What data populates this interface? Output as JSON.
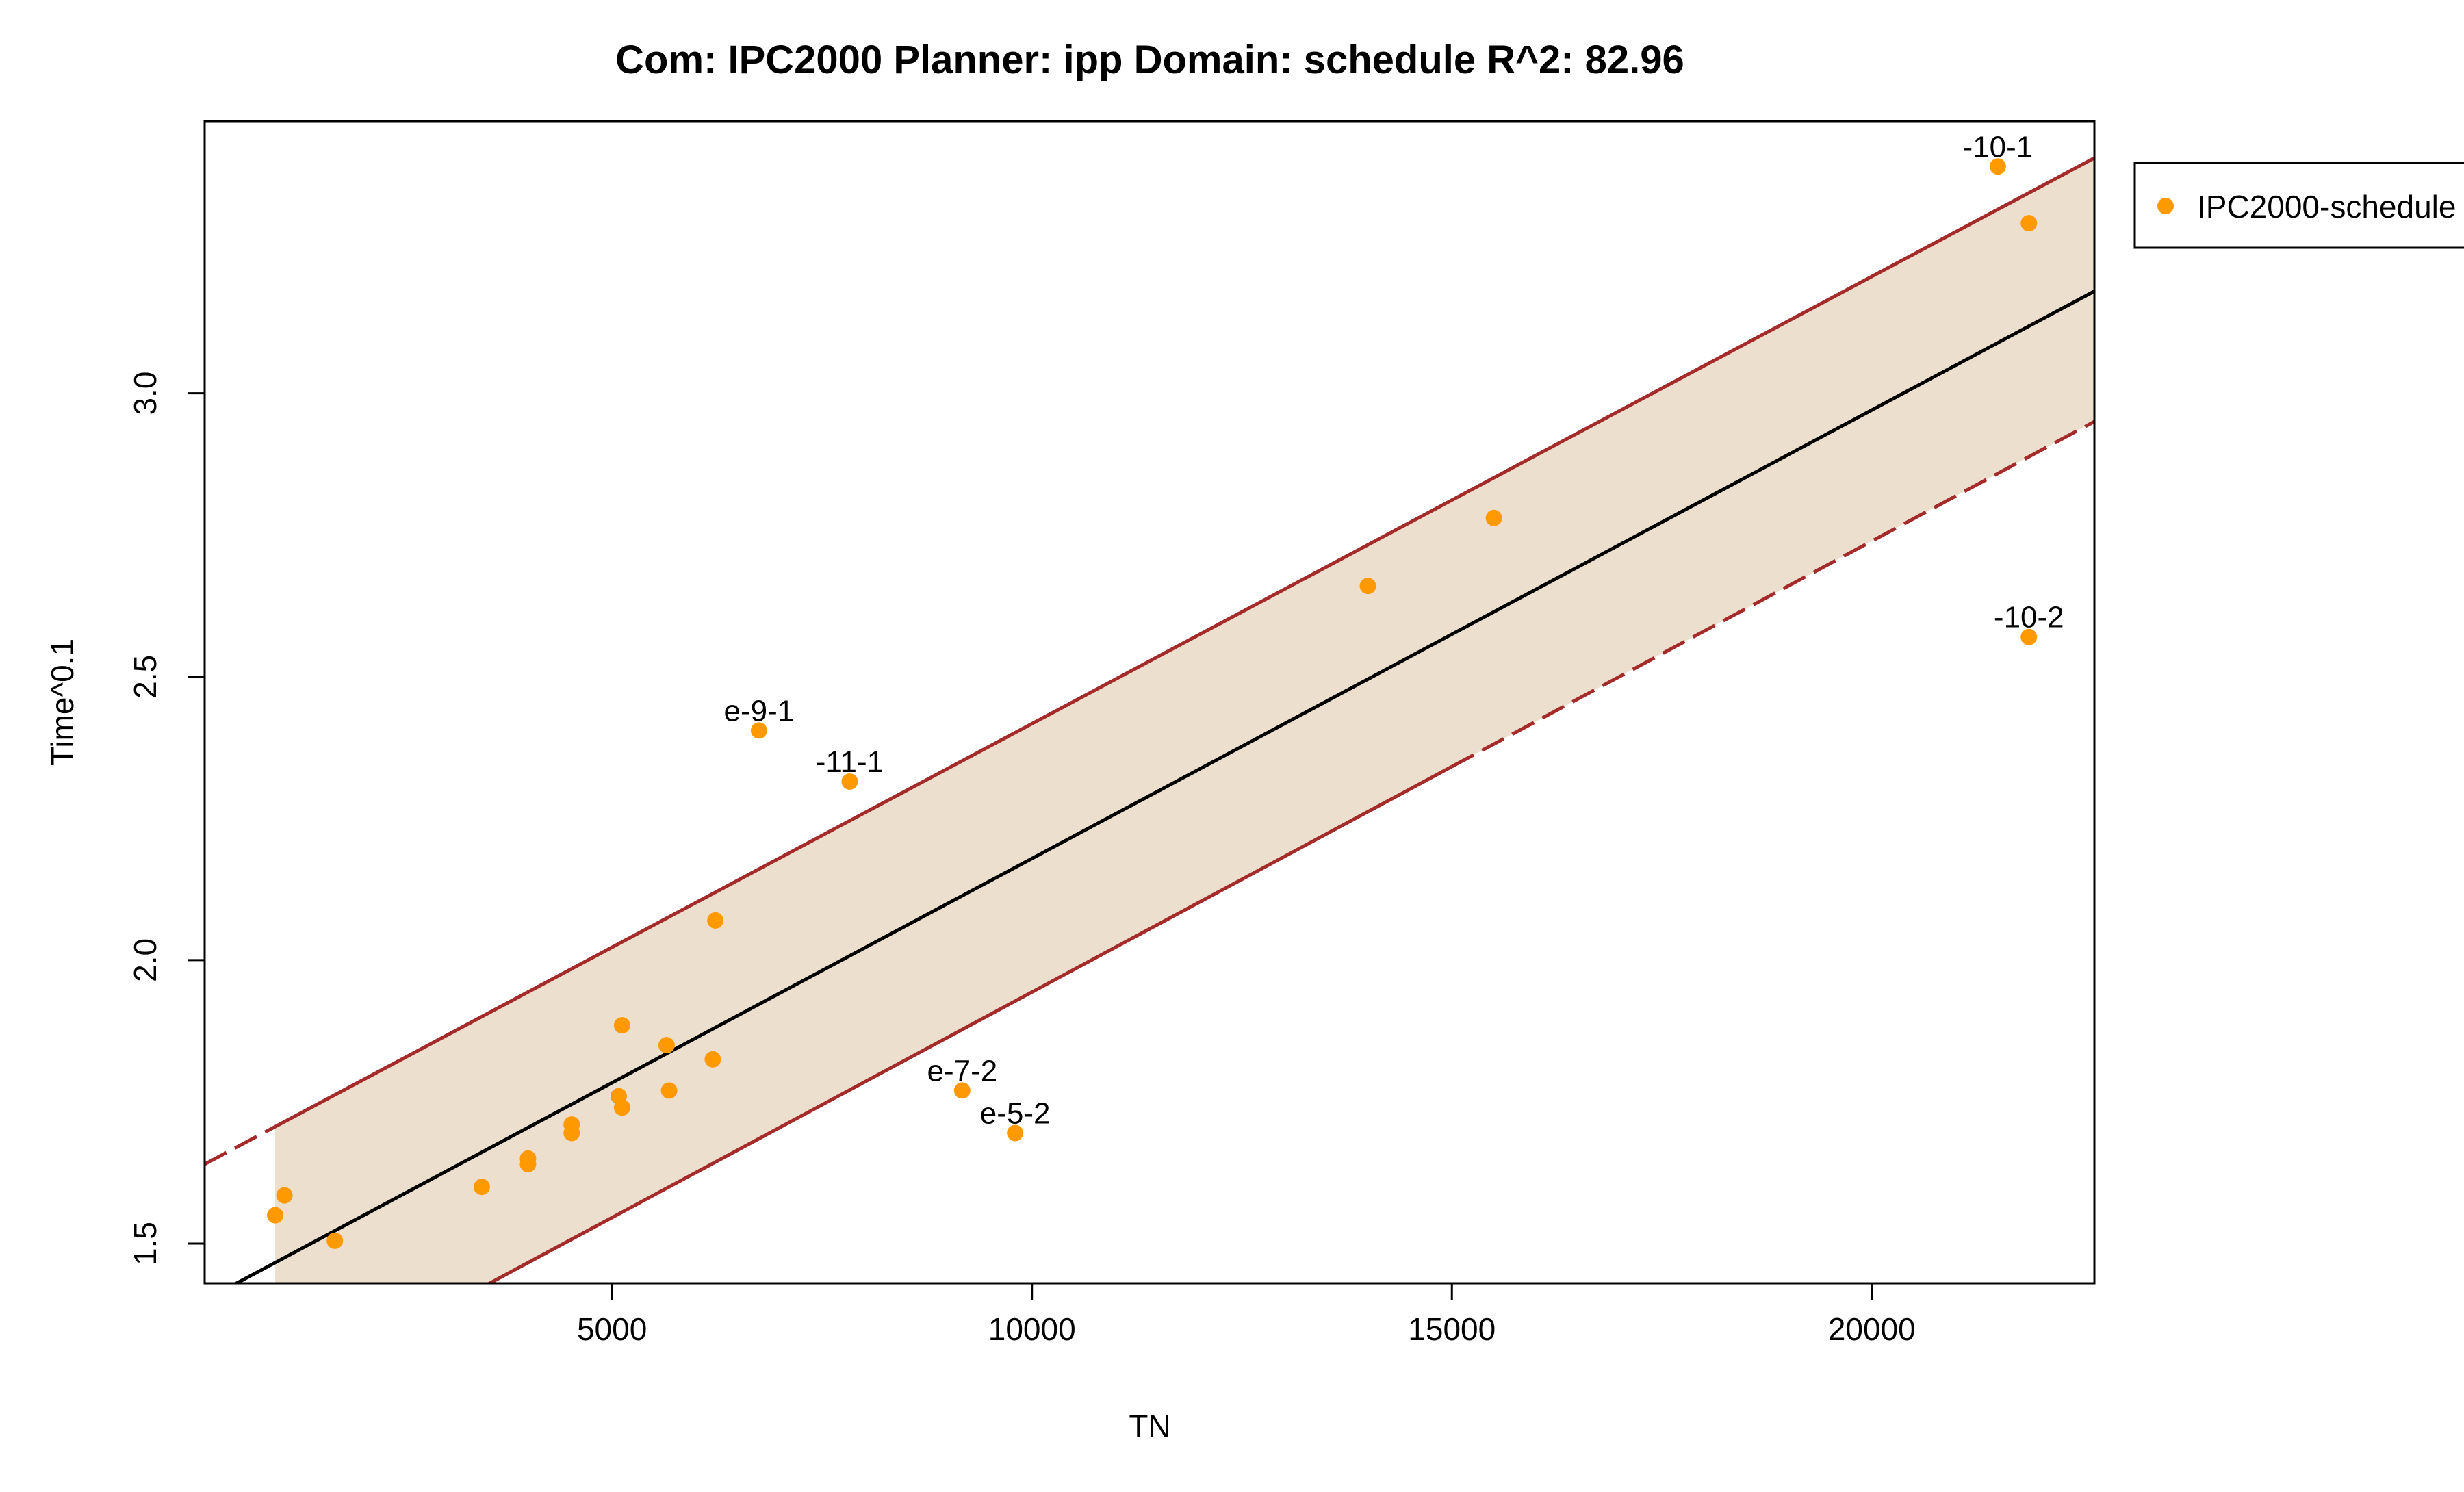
{
  "chart_data": {
    "type": "scatter",
    "title": "Com: IPC2000 Planner: ipp Domain: schedule R^2: 82.96",
    "xlabel": "TN",
    "ylabel": "Time^0.1",
    "xlim": [
      150,
      22650
    ],
    "ylim": [
      1.43,
      3.48
    ],
    "xticks": [
      5000,
      10000,
      15000,
      20000
    ],
    "xtick_labels": [
      "5000",
      "10000",
      "15000",
      "20000"
    ],
    "yticks": [
      1.5,
      2.0,
      2.5,
      3.0
    ],
    "ytick_labels": [
      "1.5",
      "2.0",
      "2.5",
      "3.0"
    ],
    "grid": false,
    "legend": {
      "position": "outside-right-top",
      "entries": [
        {
          "label": "IPC2000-schedule",
          "color": "#ff9900"
        }
      ]
    },
    "points": {
      "name": "IPC2000-schedule",
      "color": "#ff9900",
      "x": [
        990,
        1100,
        1700,
        3450,
        4000,
        4000,
        4520,
        4520,
        5080,
        5120,
        5120,
        5650,
        5680,
        6200,
        6230,
        6750,
        7830,
        9170,
        9800,
        14000,
        15500,
        21500,
        21870,
        21870
      ],
      "y": [
        1.55,
        1.585,
        1.505,
        1.6,
        1.64,
        1.65,
        1.695,
        1.71,
        1.76,
        1.885,
        1.74,
        1.85,
        1.77,
        1.825,
        2.07,
        2.405,
        2.315,
        1.77,
        1.695,
        2.66,
        2.78,
        3.4,
        3.3,
        2.57
      ]
    },
    "point_labels": [
      {
        "text": "-10-1",
        "x": 21500,
        "y": 3.4
      },
      {
        "text": "-10-2",
        "x": 21870,
        "y": 2.57
      },
      {
        "text": "e-9-1",
        "x": 6750,
        "y": 2.405
      },
      {
        "text": "-11-1",
        "x": 7830,
        "y": 2.315
      },
      {
        "text": "e-7-2",
        "x": 9170,
        "y": 1.77
      },
      {
        "text": "e-5-2",
        "x": 9800,
        "y": 1.695
      }
    ],
    "fit_line": {
      "color": "#000000",
      "x": [
        150,
        22650
      ],
      "y": [
        1.4,
        3.18
      ]
    },
    "band": {
      "fill": "#eddfcd",
      "line_color": "#a52a2a",
      "x_start": 990,
      "upper": {
        "x": [
          150,
          22650
        ],
        "y": [
          1.64,
          3.415
        ]
      },
      "lower": {
        "x": [
          150,
          22650
        ],
        "y": [
          1.16,
          2.95
        ]
      },
      "dash_before_x": 990,
      "dash_after_x": 15000
    }
  }
}
